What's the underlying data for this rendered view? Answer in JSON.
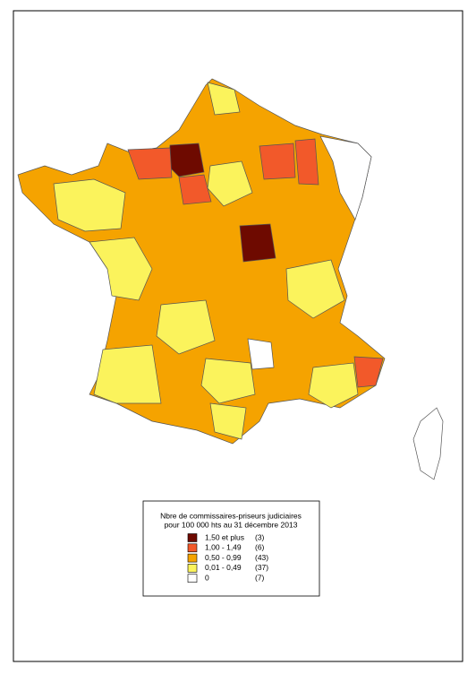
{
  "legend": {
    "title": [
      "Nbre de commissaires-priseurs judiciaires",
      "pour 100 000 hts au 31 décembre 2013"
    ],
    "items": [
      {
        "label": "1,50 et plus",
        "count": "(3)",
        "color": "#6e0a00"
      },
      {
        "label": "1,00 - 1,49",
        "count": "(6)",
        "color": "#f2592a"
      },
      {
        "label": "0,50 - 0,99",
        "count": "(43)",
        "color": "#f5a300"
      },
      {
        "label": "0,01 - 0,49",
        "count": "(37)",
        "color": "#fbf35c"
      },
      {
        "label": "0",
        "count": "(7)",
        "color": "#ffffff"
      }
    ]
  }
}
